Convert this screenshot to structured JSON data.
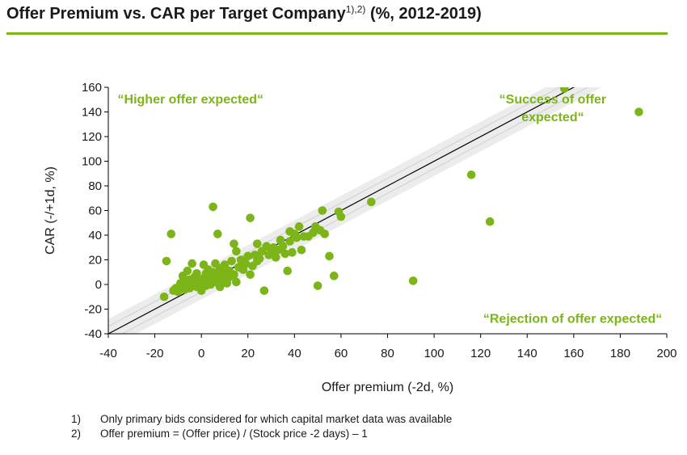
{
  "title": {
    "main": "Offer Premium vs. CAR per Target Company",
    "superscript": "1),2)",
    "suffix": " (%, 2012-2019)"
  },
  "colors": {
    "accent": "#7cb518",
    "point": "#7cb518",
    "band": "#ececec",
    "line": "#000000"
  },
  "chart_data": {
    "type": "scatter",
    "xlabel": "Offer premium (-2d, %)",
    "ylabel": "CAR (-/+1d, %)",
    "xlim": [
      -40,
      200
    ],
    "ylim": [
      -40,
      160
    ],
    "xticks": [
      -40,
      -20,
      0,
      20,
      40,
      60,
      80,
      100,
      120,
      140,
      160,
      180,
      200
    ],
    "yticks": [
      -40,
      -20,
      0,
      20,
      40,
      60,
      80,
      100,
      120,
      140,
      160
    ],
    "grid": false,
    "reference_line": {
      "slope": 1,
      "intercept": 0
    },
    "band_halfwidth": 12,
    "annotations": [
      {
        "id": "higher",
        "lines": [
          "“Higher offer expected“"
        ],
        "x": -36,
        "y": 147,
        "anchor": "start"
      },
      {
        "id": "success",
        "lines": [
          "“Success of offer",
          "expected“"
        ],
        "x": 151,
        "y": 147,
        "anchor": "middle"
      },
      {
        "id": "rejection",
        "lines": [
          "“Rejection of offer expected“"
        ],
        "x": 198,
        "y": -31,
        "anchor": "end"
      }
    ],
    "points": [
      [
        -16,
        -10
      ],
      [
        -15,
        19
      ],
      [
        -13,
        41
      ],
      [
        -12,
        -5
      ],
      [
        -11,
        -3
      ],
      [
        -10,
        -6
      ],
      [
        -9,
        1
      ],
      [
        -8,
        -2
      ],
      [
        -8,
        7
      ],
      [
        -7,
        -4
      ],
      [
        -6,
        2
      ],
      [
        -6,
        11
      ],
      [
        -5,
        -3
      ],
      [
        -5,
        4
      ],
      [
        -4,
        17
      ],
      [
        -3,
        0
      ],
      [
        -3,
        6
      ],
      [
        -2,
        -2
      ],
      [
        -2,
        9
      ],
      [
        -1,
        3
      ],
      [
        0,
        -5
      ],
      [
        0,
        1
      ],
      [
        1,
        5
      ],
      [
        1,
        16
      ],
      [
        2,
        -1
      ],
      [
        2,
        9
      ],
      [
        3,
        3
      ],
      [
        3,
        12
      ],
      [
        4,
        0
      ],
      [
        4,
        6
      ],
      [
        5,
        63
      ],
      [
        5,
        10
      ],
      [
        6,
        2
      ],
      [
        6,
        17
      ],
      [
        7,
        41
      ],
      [
        7,
        7
      ],
      [
        8,
        13
      ],
      [
        8,
        -2
      ],
      [
        9,
        4
      ],
      [
        10,
        9
      ],
      [
        10,
        16
      ],
      [
        11,
        1
      ],
      [
        12,
        11
      ],
      [
        12,
        6
      ],
      [
        13,
        19
      ],
      [
        14,
        33
      ],
      [
        14,
        8
      ],
      [
        15,
        27
      ],
      [
        15,
        2
      ],
      [
        16,
        14
      ],
      [
        17,
        20
      ],
      [
        18,
        12
      ],
      [
        19,
        17
      ],
      [
        20,
        23
      ],
      [
        21,
        54
      ],
      [
        21,
        8
      ],
      [
        22,
        15
      ],
      [
        23,
        24
      ],
      [
        24,
        33
      ],
      [
        24,
        19
      ],
      [
        25,
        21
      ],
      [
        26,
        27
      ],
      [
        27,
        -5
      ],
      [
        28,
        31
      ],
      [
        29,
        24
      ],
      [
        30,
        26
      ],
      [
        31,
        30
      ],
      [
        32,
        22
      ],
      [
        33,
        28
      ],
      [
        34,
        36
      ],
      [
        35,
        31
      ],
      [
        36,
        25
      ],
      [
        37,
        11
      ],
      [
        38,
        43
      ],
      [
        38,
        35
      ],
      [
        39,
        26
      ],
      [
        40,
        41
      ],
      [
        41,
        38
      ],
      [
        42,
        47
      ],
      [
        43,
        28
      ],
      [
        44,
        39
      ],
      [
        46,
        39
      ],
      [
        48,
        42
      ],
      [
        49,
        47
      ],
      [
        50,
        -1
      ],
      [
        51,
        44
      ],
      [
        52,
        60
      ],
      [
        53,
        41
      ],
      [
        55,
        23
      ],
      [
        57,
        7
      ],
      [
        59,
        59
      ],
      [
        60,
        55
      ],
      [
        73,
        67
      ],
      [
        91,
        3
      ],
      [
        116,
        89
      ],
      [
        124,
        51
      ],
      [
        156,
        159
      ],
      [
        188,
        140
      ]
    ]
  },
  "footnotes": [
    {
      "num": "1)",
      "text": "Only primary bids considered for which capital market data was available"
    },
    {
      "num": "2)",
      "text": "Offer premium = (Offer price) / (Stock price -2 days) – 1"
    }
  ]
}
